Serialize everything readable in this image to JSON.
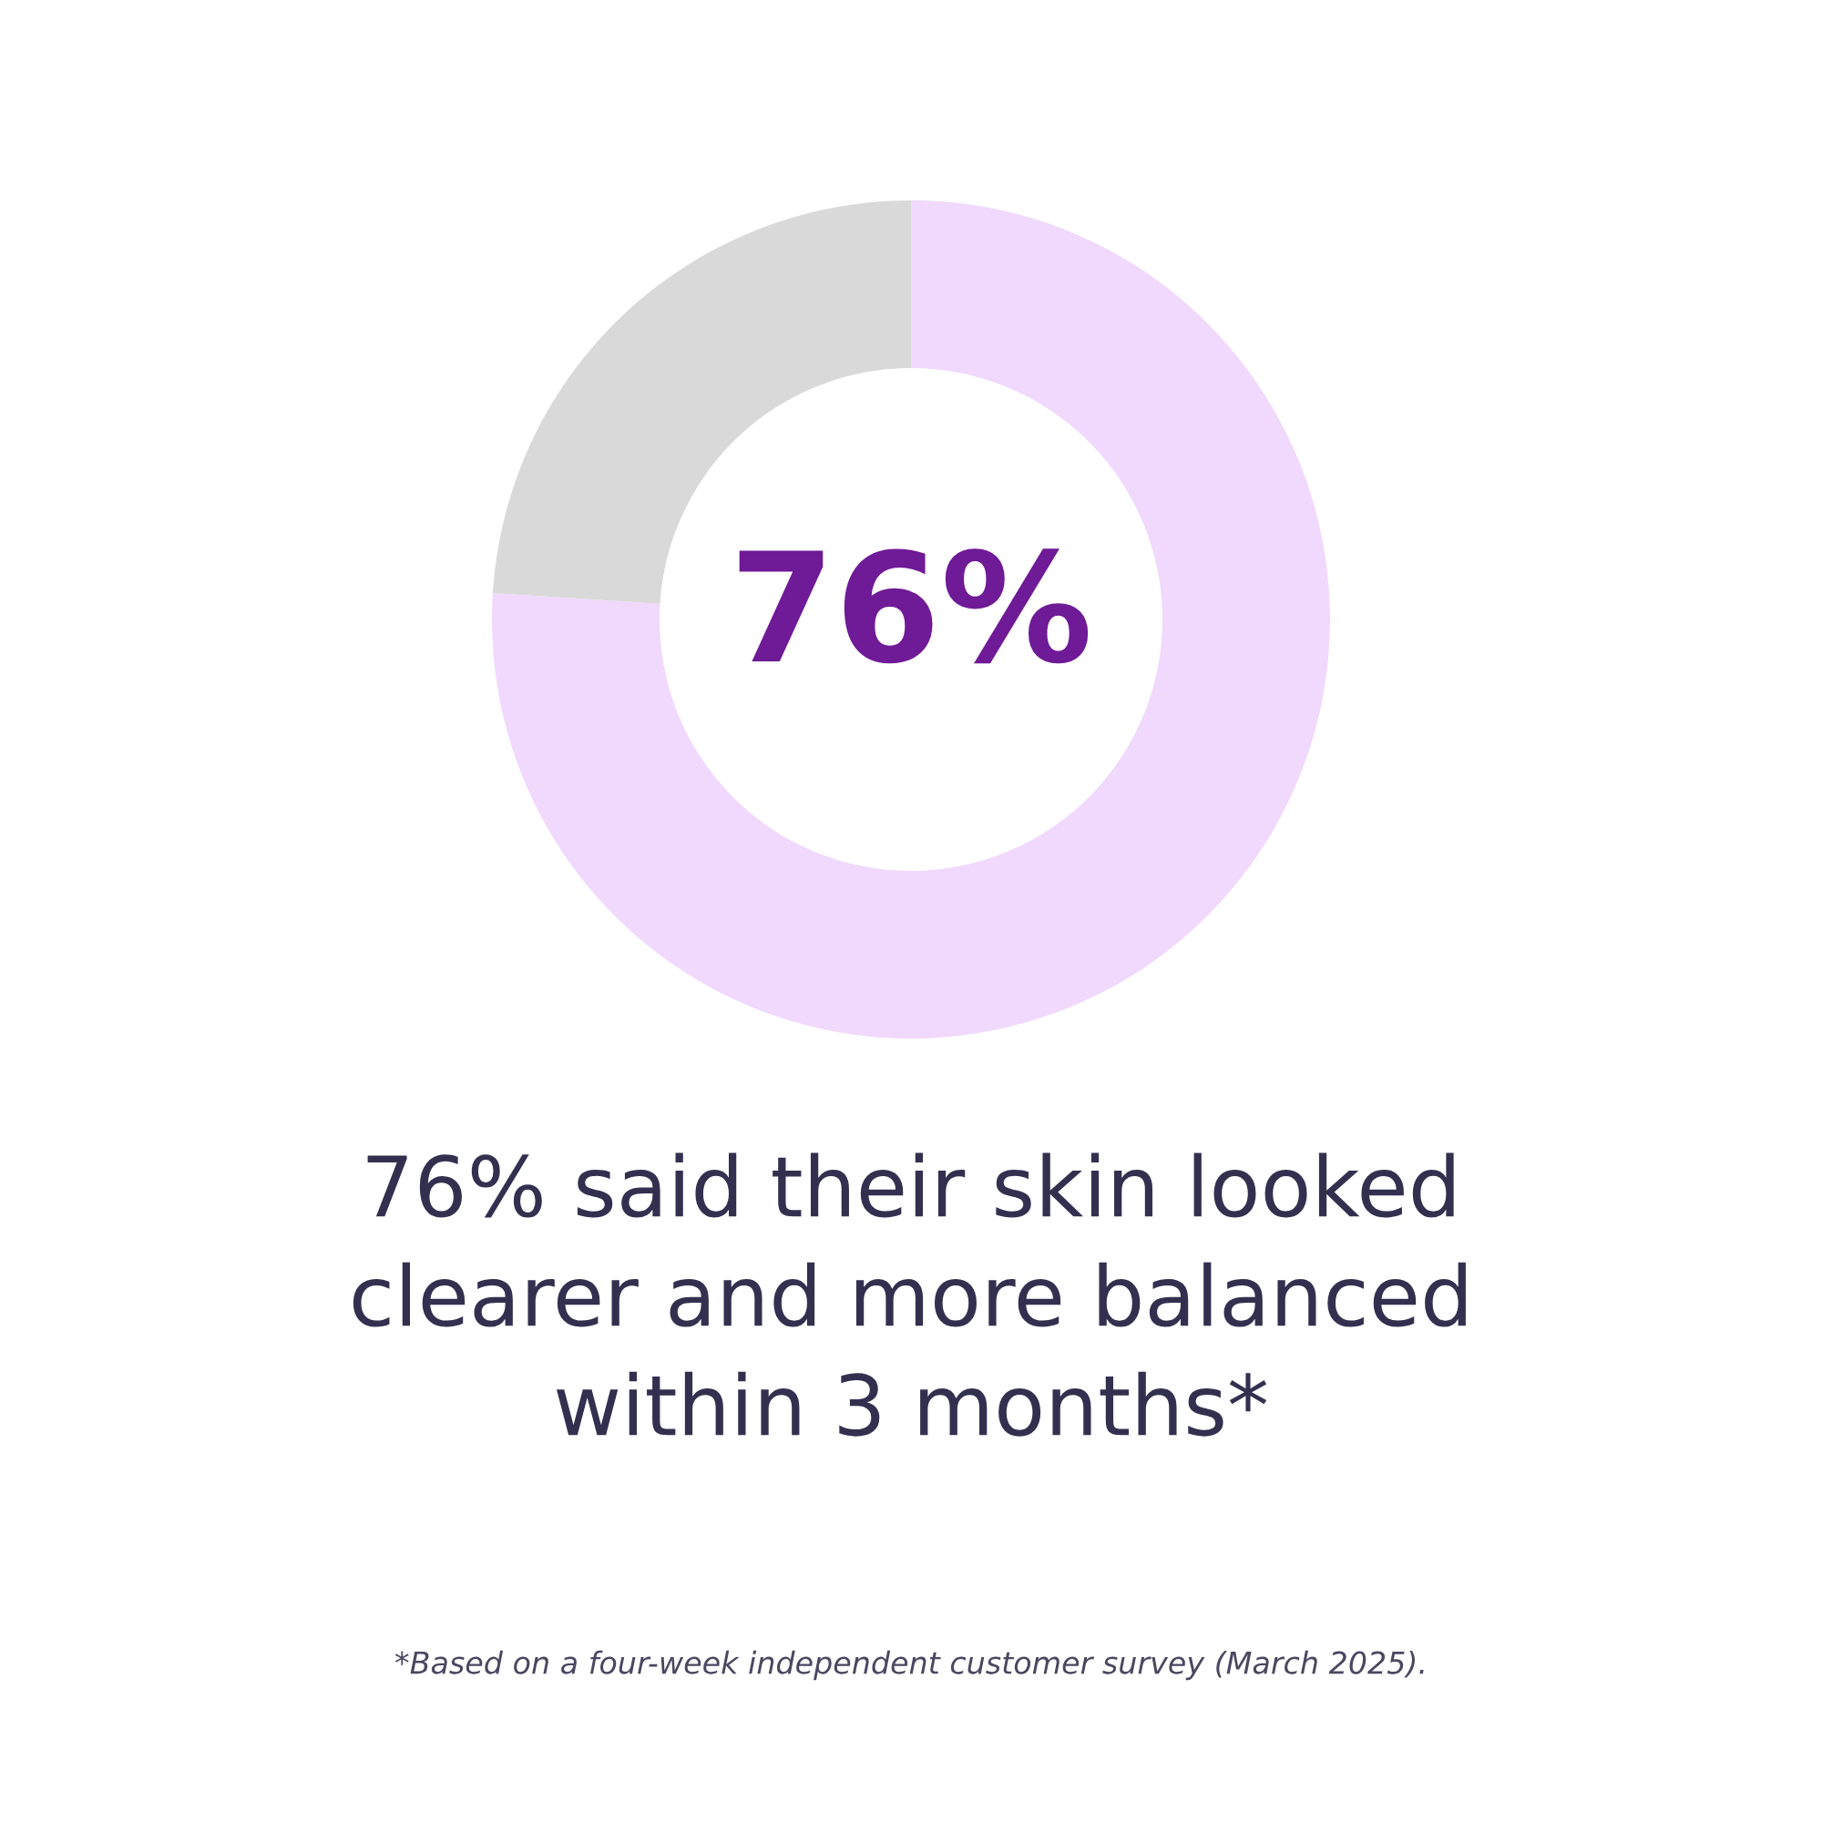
{
  "chart_data": {
    "type": "donut",
    "categories": [
      null,
      null
    ],
    "values": [
      76,
      24
    ],
    "colors": [
      "#f0d9fc",
      "#d9d9d9"
    ],
    "value_labels": [
      "76%",
      null
    ],
    "title": "76% said their skin looked\nclearer and more balanced\nwithin 3 months*",
    "annotations": [
      "*Based on a four-week independent customer survey (March 2025)."
    ]
  }
}
